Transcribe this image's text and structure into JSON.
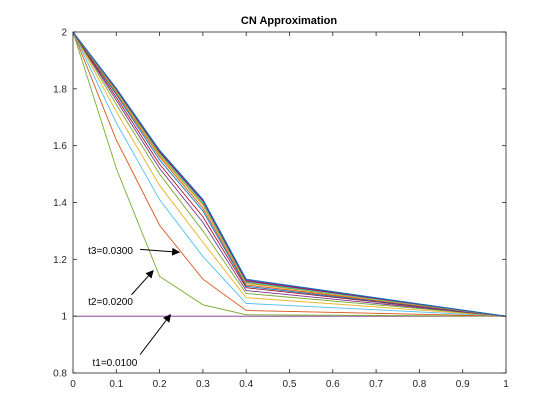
{
  "chart_data": {
    "type": "line",
    "title": "CN Approximation",
    "xlabel": "",
    "ylabel": "",
    "xlim": [
      0,
      1
    ],
    "ylim": [
      0.8,
      2
    ],
    "xticks": [
      "0",
      "0.1",
      "0.2",
      "0.3",
      "0.4",
      "0.5",
      "0.6",
      "0.7",
      "0.8",
      "0.9",
      "1"
    ],
    "yticks": [
      "0.8",
      "1",
      "1.2",
      "1.4",
      "1.6",
      "1.8",
      "2"
    ],
    "grid": false,
    "series": [
      {
        "color": "#7e2f8e",
        "points": [
          [
            0,
            1
          ],
          [
            1,
            1
          ]
        ]
      },
      {
        "color": "#77ac30",
        "points": [
          [
            0,
            2
          ],
          [
            0.1,
            1.52
          ],
          [
            0.2,
            1.14
          ],
          [
            0.3,
            1.04
          ],
          [
            0.4,
            1.005
          ],
          [
            1,
            1
          ]
        ]
      },
      {
        "color": "#d95319",
        "points": [
          [
            0,
            2
          ],
          [
            0.1,
            1.62
          ],
          [
            0.2,
            1.32
          ],
          [
            0.3,
            1.13
          ],
          [
            0.4,
            1.02
          ],
          [
            1,
            1
          ]
        ]
      },
      {
        "color": "#4dbeee",
        "points": [
          [
            0,
            2
          ],
          [
            0.1,
            1.68
          ],
          [
            0.2,
            1.41
          ],
          [
            0.3,
            1.21
          ],
          [
            0.4,
            1.045
          ],
          [
            1,
            1
          ]
        ]
      },
      {
        "color": "#edb120",
        "points": [
          [
            0,
            2
          ],
          [
            0.1,
            1.72
          ],
          [
            0.2,
            1.46
          ],
          [
            0.3,
            1.26
          ],
          [
            0.4,
            1.065
          ],
          [
            1,
            1
          ]
        ]
      },
      {
        "color": "#77ac30",
        "points": [
          [
            0,
            2
          ],
          [
            0.1,
            1.745
          ],
          [
            0.2,
            1.5
          ],
          [
            0.3,
            1.3
          ],
          [
            0.4,
            1.08
          ],
          [
            1,
            1
          ]
        ]
      },
      {
        "color": "#7e2f8e",
        "points": [
          [
            0,
            2
          ],
          [
            0.1,
            1.76
          ],
          [
            0.2,
            1.52
          ],
          [
            0.3,
            1.33
          ],
          [
            0.4,
            1.09
          ],
          [
            1,
            1
          ]
        ]
      },
      {
        "color": "#a2142f",
        "points": [
          [
            0,
            2
          ],
          [
            0.1,
            1.77
          ],
          [
            0.2,
            1.535
          ],
          [
            0.3,
            1.35
          ],
          [
            0.4,
            1.1
          ],
          [
            1,
            1
          ]
        ]
      },
      {
        "color": "#0072bd",
        "points": [
          [
            0,
            2
          ],
          [
            0.1,
            1.78
          ],
          [
            0.2,
            1.55
          ],
          [
            0.3,
            1.37
          ],
          [
            0.4,
            1.105
          ],
          [
            1,
            1
          ]
        ]
      },
      {
        "color": "#d95319",
        "points": [
          [
            0,
            2
          ],
          [
            0.1,
            1.785
          ],
          [
            0.2,
            1.56
          ],
          [
            0.3,
            1.38
          ],
          [
            0.4,
            1.11
          ],
          [
            1,
            1
          ]
        ]
      },
      {
        "color": "#edb120",
        "points": [
          [
            0,
            2
          ],
          [
            0.1,
            1.79
          ],
          [
            0.2,
            1.565
          ],
          [
            0.3,
            1.39
          ],
          [
            0.4,
            1.115
          ],
          [
            1,
            1
          ]
        ]
      },
      {
        "color": "#77ac30",
        "points": [
          [
            0,
            2
          ],
          [
            0.1,
            1.793
          ],
          [
            0.2,
            1.57
          ],
          [
            0.3,
            1.395
          ],
          [
            0.4,
            1.118
          ],
          [
            1,
            1
          ]
        ]
      },
      {
        "color": "#4dbeee",
        "points": [
          [
            0,
            2
          ],
          [
            0.1,
            1.796
          ],
          [
            0.2,
            1.575
          ],
          [
            0.3,
            1.4
          ],
          [
            0.4,
            1.121
          ],
          [
            1,
            1
          ]
        ]
      },
      {
        "color": "#a2142f",
        "points": [
          [
            0,
            2
          ],
          [
            0.1,
            1.798
          ],
          [
            0.2,
            1.578
          ],
          [
            0.3,
            1.405
          ],
          [
            0.4,
            1.124
          ],
          [
            1,
            1
          ]
        ]
      },
      {
        "color": "#7e2f8e",
        "points": [
          [
            0,
            2
          ],
          [
            0.1,
            1.8
          ],
          [
            0.2,
            1.581
          ],
          [
            0.3,
            1.408
          ],
          [
            0.4,
            1.127
          ],
          [
            1,
            1
          ]
        ]
      },
      {
        "color": "#0072bd",
        "points": [
          [
            0,
            2
          ],
          [
            0.1,
            1.802
          ],
          [
            0.2,
            1.584
          ],
          [
            0.3,
            1.411
          ],
          [
            0.4,
            1.13
          ],
          [
            1,
            1
          ]
        ]
      }
    ],
    "annotations": [
      {
        "text": "t3=0.0300",
        "text_at": [
          0.035,
          1.23
        ],
        "arrow_from": [
          0.155,
          1.235
        ],
        "arrow_to": [
          0.245,
          1.225
        ]
      },
      {
        "text": "t2=0.0200",
        "text_at": [
          0.035,
          1.05
        ],
        "arrow_from": [
          0.135,
          1.075
        ],
        "arrow_to": [
          0.185,
          1.16
        ]
      },
      {
        "text": "t1=0.0100",
        "text_at": [
          0.045,
          0.835
        ],
        "arrow_from": [
          0.155,
          0.865
        ],
        "arrow_to": [
          0.225,
          1.005
        ]
      }
    ]
  }
}
